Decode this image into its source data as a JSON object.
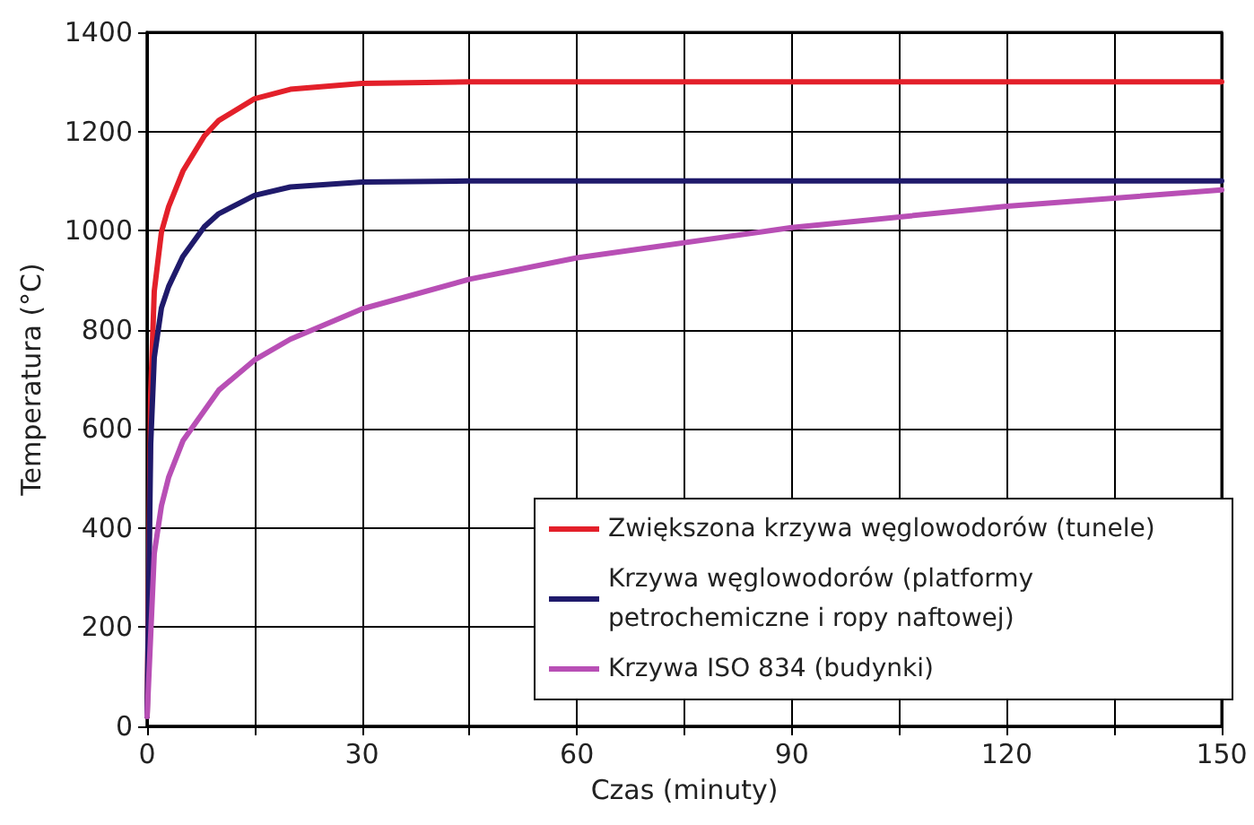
{
  "chart_data": {
    "type": "line",
    "xlabel": "Czas (minuty)",
    "ylabel": "Temperatura (°C)",
    "xlim": [
      0,
      150
    ],
    "xticks": [
      0,
      {
        "value": 15,
        "label": null
      },
      30,
      {
        "value": 45,
        "label": null
      },
      60,
      {
        "value": 75,
        "label": null
      },
      90,
      {
        "value": 105,
        "label": null
      },
      120,
      {
        "value": 135,
        "label": null
      },
      150
    ],
    "ylim": [
      0,
      1400
    ],
    "yticks": [
      0,
      200,
      400,
      600,
      800,
      1000,
      1200,
      1400
    ],
    "grid": true,
    "legend": "bottom right",
    "marker": "none",
    "line_style": "solid",
    "series": [
      {
        "name": "Zwiększona krzywa węglowodorów (tunele)",
        "color": "#e3202a",
        "x": [
          0,
          0.5,
          1,
          2,
          3,
          5,
          8,
          10,
          15,
          20,
          30,
          45,
          60,
          90,
          120,
          150
        ],
        "values": [
          20,
          670,
          878,
          997,
          1048,
          1120,
          1191,
          1222,
          1266,
          1285,
          1297,
          1300,
          1300,
          1300,
          1300,
          1300
        ]
      },
      {
        "name": "Krzywa węglowodorów (platformy petrochemiczne i ropy naftowej)",
        "color": "#1f1a6b",
        "x": [
          0,
          0.5,
          1,
          2,
          3,
          5,
          8,
          10,
          15,
          20,
          30,
          45,
          60,
          90,
          120,
          150
        ],
        "values": [
          20,
          569,
          744,
          844,
          887,
          948,
          1008,
          1034,
          1071,
          1088,
          1098,
          1100,
          1100,
          1100,
          1100,
          1100
        ]
      },
      {
        "name": "Krzywa ISO 834 (budynki)",
        "color": "#b84fb5",
        "x": [
          0,
          1,
          2,
          3,
          5,
          10,
          15,
          20,
          30,
          45,
          60,
          90,
          120,
          150
        ],
        "values": [
          20,
          349,
          445,
          502,
          576,
          678,
          739,
          781,
          842,
          902,
          945,
          1006,
          1049,
          1082
        ]
      }
    ]
  }
}
